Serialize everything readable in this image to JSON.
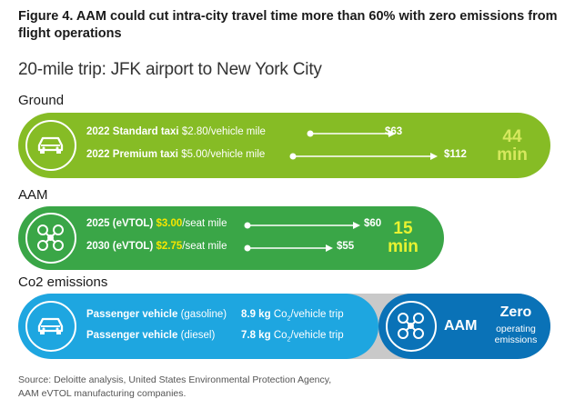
{
  "figure": {
    "title": "Figure 4. AAM could cut intra-city travel time more than 60% with zero emissions from flight operations",
    "subtitle": "20-mile trip: JFK airport to New York City"
  },
  "sections": {
    "ground": "Ground",
    "aam": "AAM",
    "co2": "Co2 emissions"
  },
  "chart_data": {
    "type": "infographic",
    "title": "Figure 4. AAM could cut intra-city travel time more than 60% with zero emissions from flight operations",
    "subtitle": "20-mile trip: JFK airport to New York City",
    "ground": {
      "time_value": "44",
      "time_unit": "min",
      "rows": [
        {
          "name": "2022 Standard taxi",
          "rate": "$2.80",
          "unit": "/vehicle mile",
          "cost": "$63",
          "value": 63
        },
        {
          "name": "2022 Premium taxi",
          "rate": "$5.00",
          "unit": "/vehicle mile",
          "cost": "$112",
          "value": 112
        }
      ]
    },
    "aam": {
      "time_value": "15",
      "time_unit": "min",
      "rows": [
        {
          "name": "2025 (eVTOL)",
          "rate": "$3.00",
          "unit": "/seat mile",
          "cost": "$60",
          "value": 60
        },
        {
          "name": "2030 (eVTOL)",
          "rate": "$2.75",
          "unit": "/seat mile",
          "cost": "$55",
          "value": 55
        }
      ]
    },
    "co2": {
      "rows": [
        {
          "name": "Passenger vehicle",
          "fuel": "(gasoline)",
          "amount": "8.9 kg",
          "unit_pre": "Co",
          "unit_sub": "2",
          "unit_post": "/vehicle trip",
          "value": 8.9
        },
        {
          "name": "Passenger vehicle",
          "fuel": "(diesel)",
          "amount": "7.8 kg",
          "unit_pre": "Co",
          "unit_sub": "2",
          "unit_post": "/vehicle trip",
          "value": 7.8
        }
      ],
      "aam_label": "AAM",
      "aam_value": "Zero",
      "aam_note_1": "operating",
      "aam_note_2": "emissions"
    }
  },
  "icons": {
    "ground": "car-icon",
    "aam": "drone-icon",
    "co2_car": "car-icon",
    "co2_aam": "drone-icon"
  },
  "colors": {
    "ground_pill": "#86bc25",
    "aam_pill": "#3aa647",
    "co2_pill": "#1ea6e0",
    "aam_emissions_pill": "#0a72b7",
    "highlight": "#f6e600"
  },
  "source": {
    "line1": "Source: Deloitte analysis, United States Environmental Protection Agency,",
    "line2": "AAM eVTOL manufacturing companies."
  }
}
